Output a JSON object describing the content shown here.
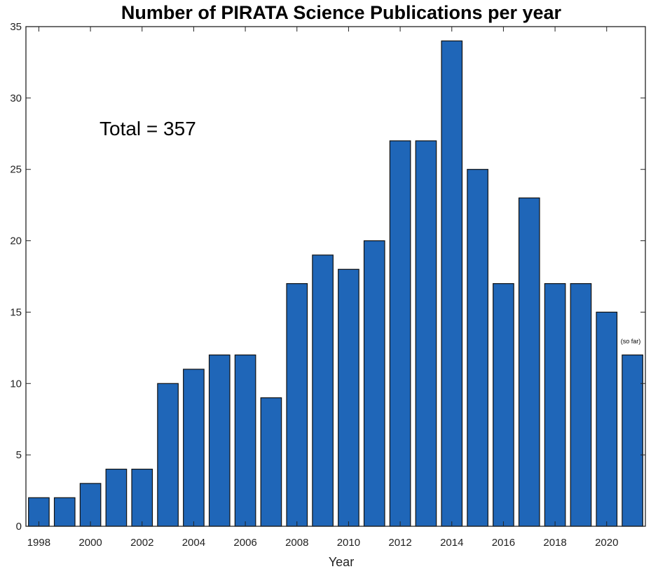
{
  "chart_data": {
    "type": "bar",
    "title": "Number of PIRATA Science Publications per year",
    "xlabel": "Year",
    "ylabel": "",
    "x": [
      1998,
      1999,
      2000,
      2001,
      2002,
      2003,
      2004,
      2005,
      2006,
      2007,
      2008,
      2009,
      2010,
      2011,
      2012,
      2013,
      2014,
      2015,
      2016,
      2017,
      2018,
      2019,
      2020,
      2021
    ],
    "values": [
      2,
      2,
      3,
      4,
      4,
      10,
      11,
      12,
      12,
      9,
      17,
      19,
      18,
      20,
      27,
      27,
      34,
      25,
      17,
      23,
      17,
      17,
      15,
      12
    ],
    "xticks": [
      "1998",
      "2000",
      "2002",
      "2004",
      "2006",
      "2008",
      "2010",
      "2012",
      "2014",
      "2016",
      "2018",
      "2020"
    ],
    "yticks": [
      "0",
      "5",
      "10",
      "15",
      "20",
      "25",
      "30",
      "35"
    ],
    "xlim": [
      1997.5,
      2021.5
    ],
    "ylim": [
      0,
      35
    ],
    "grid": false,
    "bar_color": "#1f66b8",
    "annotations": {
      "total": "Total = 357",
      "so_far": "(so far)"
    }
  }
}
